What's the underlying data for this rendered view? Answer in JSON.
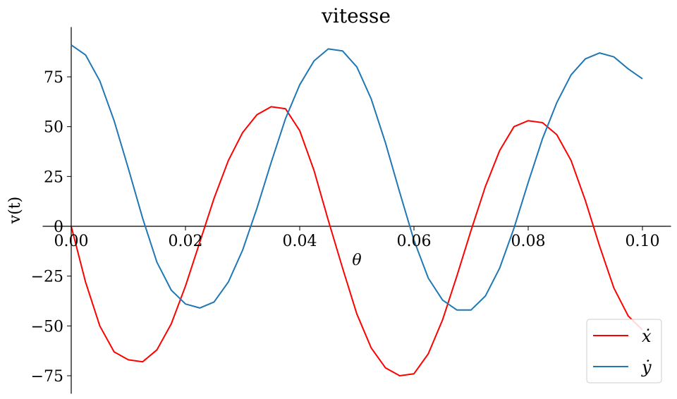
{
  "chart_data": {
    "type": "line",
    "title": "vitesse",
    "xlabel": "θ",
    "ylabel": "v(t)",
    "xlim": [
      0.0,
      0.105
    ],
    "ylim": [
      -84,
      100
    ],
    "grid": false,
    "legend_position": "lower-right",
    "x_ticks": [
      0.0,
      0.02,
      0.04,
      0.06,
      0.08,
      0.1
    ],
    "x_tick_labels": [
      "0.00",
      "0.02",
      "0.04",
      "0.06",
      "0.08",
      "0.10"
    ],
    "y_ticks": [
      -75,
      -50,
      -25,
      0,
      25,
      50,
      75
    ],
    "y_tick_labels": [
      "−75",
      "−50",
      "−25",
      "0",
      "25",
      "50",
      "75"
    ],
    "series": [
      {
        "name": "ẋ",
        "color": "#ff0000",
        "points": [
          [
            0.0,
            0
          ],
          [
            0.0025,
            -28
          ],
          [
            0.005,
            -50
          ],
          [
            0.0075,
            -63
          ],
          [
            0.01,
            -67
          ],
          [
            0.0125,
            -68
          ],
          [
            0.015,
            -62
          ],
          [
            0.0175,
            -49
          ],
          [
            0.02,
            -30
          ],
          [
            0.0225,
            -8
          ],
          [
            0.025,
            14
          ],
          [
            0.0275,
            33
          ],
          [
            0.03,
            47
          ],
          [
            0.0325,
            56
          ],
          [
            0.035,
            60
          ],
          [
            0.0375,
            59
          ],
          [
            0.04,
            48
          ],
          [
            0.0425,
            28
          ],
          [
            0.045,
            3
          ],
          [
            0.0475,
            -21
          ],
          [
            0.05,
            -44
          ],
          [
            0.0525,
            -61
          ],
          [
            0.055,
            -71
          ],
          [
            0.0575,
            -75
          ],
          [
            0.06,
            -74
          ],
          [
            0.0625,
            -64
          ],
          [
            0.065,
            -47
          ],
          [
            0.0675,
            -25
          ],
          [
            0.07,
            -2
          ],
          [
            0.0725,
            20
          ],
          [
            0.075,
            38
          ],
          [
            0.0775,
            50
          ],
          [
            0.08,
            53
          ],
          [
            0.0825,
            52
          ],
          [
            0.085,
            46
          ],
          [
            0.0875,
            33
          ],
          [
            0.09,
            13
          ],
          [
            0.0925,
            -10
          ],
          [
            0.095,
            -31
          ],
          [
            0.0975,
            -45
          ],
          [
            0.1,
            -52
          ]
        ]
      },
      {
        "name": "ẏ",
        "color": "#1f77b4",
        "points": [
          [
            0.0,
            91
          ],
          [
            0.0025,
            86
          ],
          [
            0.005,
            73
          ],
          [
            0.0075,
            53
          ],
          [
            0.01,
            29
          ],
          [
            0.0125,
            4
          ],
          [
            0.015,
            -18
          ],
          [
            0.0175,
            -32
          ],
          [
            0.02,
            -39
          ],
          [
            0.0225,
            -41
          ],
          [
            0.025,
            -38
          ],
          [
            0.0275,
            -28
          ],
          [
            0.03,
            -12
          ],
          [
            0.0325,
            9
          ],
          [
            0.035,
            32
          ],
          [
            0.0375,
            54
          ],
          [
            0.04,
            71
          ],
          [
            0.0425,
            83
          ],
          [
            0.045,
            89
          ],
          [
            0.0475,
            88
          ],
          [
            0.05,
            80
          ],
          [
            0.0525,
            64
          ],
          [
            0.055,
            42
          ],
          [
            0.0575,
            17
          ],
          [
            0.06,
            -7
          ],
          [
            0.0625,
            -26
          ],
          [
            0.065,
            -37
          ],
          [
            0.0675,
            -42
          ],
          [
            0.07,
            -42
          ],
          [
            0.0725,
            -35
          ],
          [
            0.075,
            -21
          ],
          [
            0.0775,
            -1
          ],
          [
            0.08,
            22
          ],
          [
            0.0825,
            44
          ],
          [
            0.085,
            62
          ],
          [
            0.0875,
            76
          ],
          [
            0.09,
            84
          ],
          [
            0.0925,
            87
          ],
          [
            0.095,
            85
          ],
          [
            0.0975,
            79
          ],
          [
            0.1,
            74
          ]
        ]
      }
    ]
  }
}
